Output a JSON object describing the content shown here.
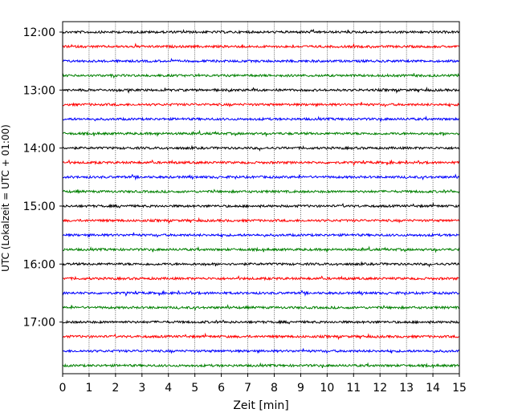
{
  "chart_data": {
    "type": "line",
    "title": "",
    "xlabel": "Zeit  [min]",
    "ylabel": "UTC (Lokalzeit = UTC + 01:00)",
    "xlim": [
      0,
      15
    ],
    "x_ticks": [
      0,
      1,
      2,
      3,
      4,
      5,
      6,
      7,
      8,
      9,
      10,
      11,
      12,
      13,
      14,
      15
    ],
    "y_ticks": [
      "12:00",
      "13:00",
      "14:00",
      "15:00",
      "16:00",
      "17:00"
    ],
    "x_grid": true,
    "legend": "none",
    "trace_interval_min": 15,
    "first_trace": "12:00",
    "colors": [
      "#000000",
      "#ff0000",
      "#0000ff",
      "#008000"
    ],
    "series": [
      {
        "start": "12:00",
        "color": "#000000"
      },
      {
        "start": "12:15",
        "color": "#ff0000"
      },
      {
        "start": "12:30",
        "color": "#0000ff"
      },
      {
        "start": "12:45",
        "color": "#008000"
      },
      {
        "start": "13:00",
        "color": "#000000"
      },
      {
        "start": "13:15",
        "color": "#ff0000"
      },
      {
        "start": "13:30",
        "color": "#0000ff"
      },
      {
        "start": "13:45",
        "color": "#008000"
      },
      {
        "start": "14:00",
        "color": "#000000"
      },
      {
        "start": "14:15",
        "color": "#ff0000"
      },
      {
        "start": "14:30",
        "color": "#0000ff"
      },
      {
        "start": "14:45",
        "color": "#008000"
      },
      {
        "start": "15:00",
        "color": "#000000"
      },
      {
        "start": "15:15",
        "color": "#ff0000"
      },
      {
        "start": "15:30",
        "color": "#0000ff"
      },
      {
        "start": "15:45",
        "color": "#008000"
      },
      {
        "start": "16:00",
        "color": "#000000"
      },
      {
        "start": "16:15",
        "color": "#ff0000"
      },
      {
        "start": "16:30",
        "color": "#0000ff"
      },
      {
        "start": "16:45",
        "color": "#008000"
      },
      {
        "start": "17:00",
        "color": "#000000"
      },
      {
        "start": "17:15",
        "color": "#ff0000"
      },
      {
        "start": "17:30",
        "color": "#0000ff"
      },
      {
        "start": "17:45",
        "color": "#008000"
      }
    ]
  }
}
